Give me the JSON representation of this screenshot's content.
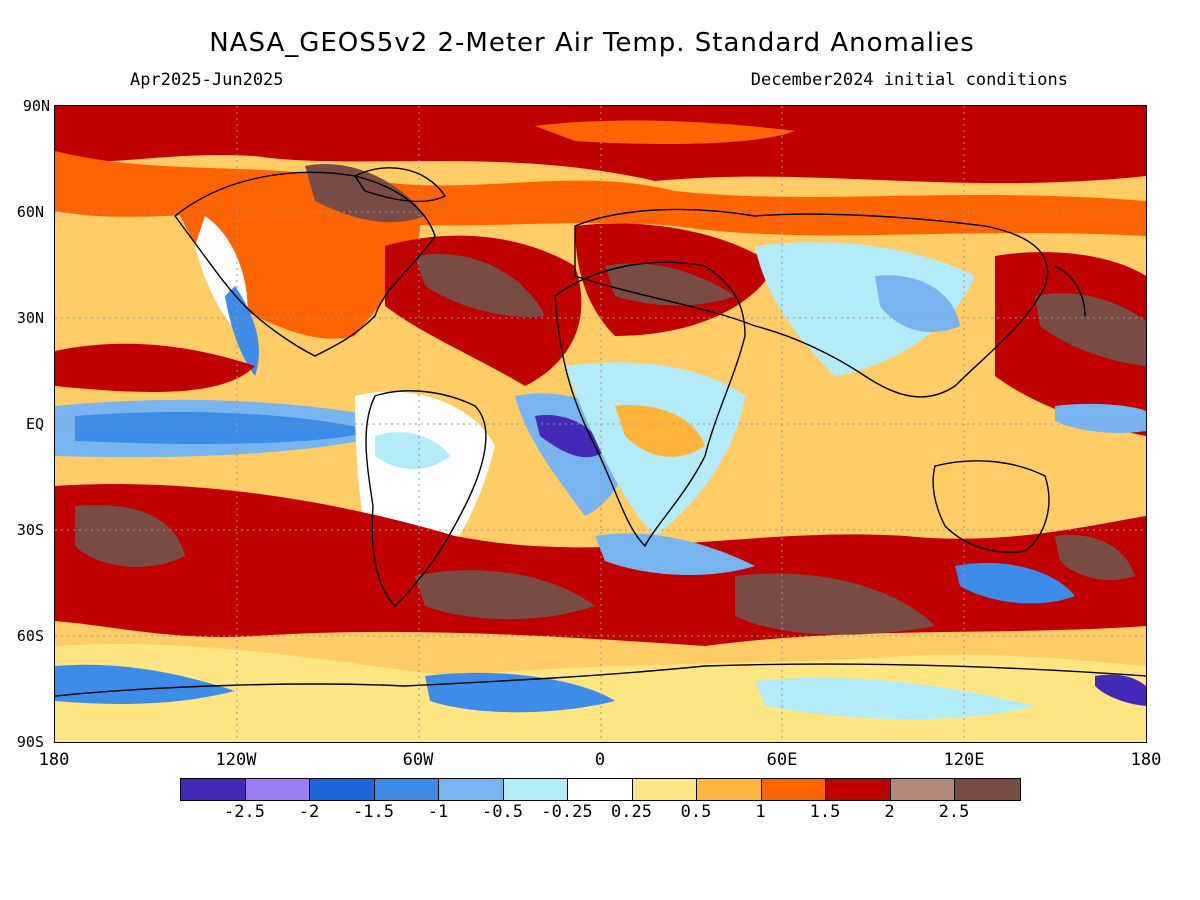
{
  "title": "NASA_GEOS5v2 2-Meter Air Temp. Standard Anomalies",
  "period": "Apr2025-Jun2025",
  "init": "December2024 initial conditions",
  "y_axis": [
    "90N",
    "60N",
    "30N",
    "EQ",
    "30S",
    "60S",
    "90S"
  ],
  "x_axis": [
    "180",
    "120W",
    "60W",
    "0",
    "60E",
    "120E",
    "180"
  ],
  "colorbar": {
    "colors": [
      "#4428b8",
      "#9b7cf2",
      "#1e64dc",
      "#3c8ce8",
      "#78b4f0",
      "#b4ebf8",
      "#ffffff",
      "#ffe682",
      "#ffb43c",
      "#ff6400",
      "#c00000",
      "#b48878",
      "#784c44"
    ],
    "labels": [
      "-2.5",
      "-2",
      "-1.5",
      "-1",
      "-0.5",
      "-0.25",
      "0.25",
      "0.5",
      "1",
      "1.5",
      "2",
      "2.5"
    ]
  }
}
